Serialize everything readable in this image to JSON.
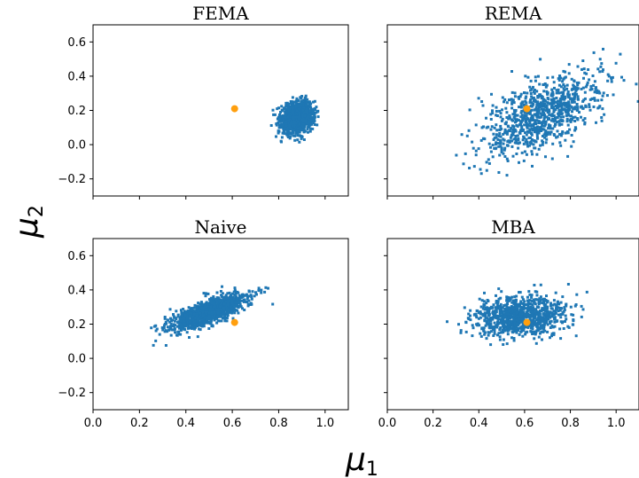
{
  "figure": {
    "xlabel": "μ",
    "xlabel_sub": "1",
    "ylabel": "μ",
    "ylabel_sub": "2"
  },
  "chart_data": [
    {
      "type": "scatter",
      "title": "FEMA",
      "xlim": [
        0.0,
        1.1
      ],
      "ylim": [
        -0.3,
        0.7
      ],
      "xticks": [
        0.0,
        0.2,
        0.4,
        0.6,
        0.8,
        1.0
      ],
      "yticks": [
        -0.2,
        0.0,
        0.2,
        0.4,
        0.6
      ],
      "x_tick_labels_shown": false,
      "y_tick_labels_shown": true,
      "cloud": {
        "color": "#1f77b4",
        "n": 1200,
        "center": [
          0.88,
          0.16
        ],
        "sd": [
          0.035,
          0.045
        ],
        "corr": 0.2,
        "x_range": [
          0.74,
          1.02
        ],
        "y_range": [
          0.0,
          0.31
        ]
      },
      "reference_point": {
        "color": "#ff9f0e",
        "x": 0.61,
        "y": 0.21
      }
    },
    {
      "type": "scatter",
      "title": "REMA",
      "xlim": [
        0.0,
        1.1
      ],
      "ylim": [
        -0.3,
        0.7
      ],
      "xticks": [
        0.0,
        0.2,
        0.4,
        0.6,
        0.8,
        1.0
      ],
      "yticks": [
        -0.2,
        0.0,
        0.2,
        0.4,
        0.6
      ],
      "x_tick_labels_shown": false,
      "y_tick_labels_shown": false,
      "cloud": {
        "color": "#1f77b4",
        "n": 900,
        "center": [
          0.68,
          0.18
        ],
        "sd": [
          0.13,
          0.12
        ],
        "corr": 0.55,
        "x_range": [
          0.3,
          1.1
        ],
        "y_range": [
          -0.2,
          0.58
        ]
      },
      "reference_point": {
        "color": "#ff9f0e",
        "x": 0.61,
        "y": 0.21
      }
    },
    {
      "type": "scatter",
      "title": "Naive",
      "xlim": [
        0.0,
        1.1
      ],
      "ylim": [
        -0.3,
        0.7
      ],
      "xticks": [
        0.0,
        0.2,
        0.4,
        0.6,
        0.8,
        1.0
      ],
      "yticks": [
        -0.2,
        0.0,
        0.2,
        0.4,
        0.6
      ],
      "xtick_labels": [
        "0.0",
        "0.2",
        "0.4",
        "0.6",
        "0.8",
        "1.0"
      ],
      "x_tick_labels_shown": true,
      "y_tick_labels_shown": true,
      "cloud": {
        "color": "#1f77b4",
        "n": 1100,
        "center": [
          0.5,
          0.27
        ],
        "sd": [
          0.085,
          0.055
        ],
        "corr": 0.75,
        "x_range": [
          0.25,
          0.88
        ],
        "y_range": [
          0.06,
          0.45
        ]
      },
      "reference_point": {
        "color": "#ff9f0e",
        "x": 0.61,
        "y": 0.21
      }
    },
    {
      "type": "scatter",
      "title": "MBA",
      "xlim": [
        0.0,
        1.1
      ],
      "ylim": [
        -0.3,
        0.7
      ],
      "xticks": [
        0.0,
        0.2,
        0.4,
        0.6,
        0.8,
        1.0
      ],
      "yticks": [
        -0.2,
        0.0,
        0.2,
        0.4,
        0.6
      ],
      "xtick_labels": [
        "0.0",
        "0.2",
        "0.4",
        "0.6",
        "0.8",
        "1.0"
      ],
      "x_tick_labels_shown": true,
      "y_tick_labels_shown": false,
      "cloud": {
        "color": "#1f77b4",
        "n": 950,
        "center": [
          0.58,
          0.25
        ],
        "sd": [
          0.1,
          0.06
        ],
        "corr": 0.15,
        "x_range": [
          0.2,
          1.05
        ],
        "y_range": [
          0.01,
          0.47
        ]
      },
      "reference_point": {
        "color": "#ff9f0e",
        "x": 0.61,
        "y": 0.21
      }
    }
  ]
}
